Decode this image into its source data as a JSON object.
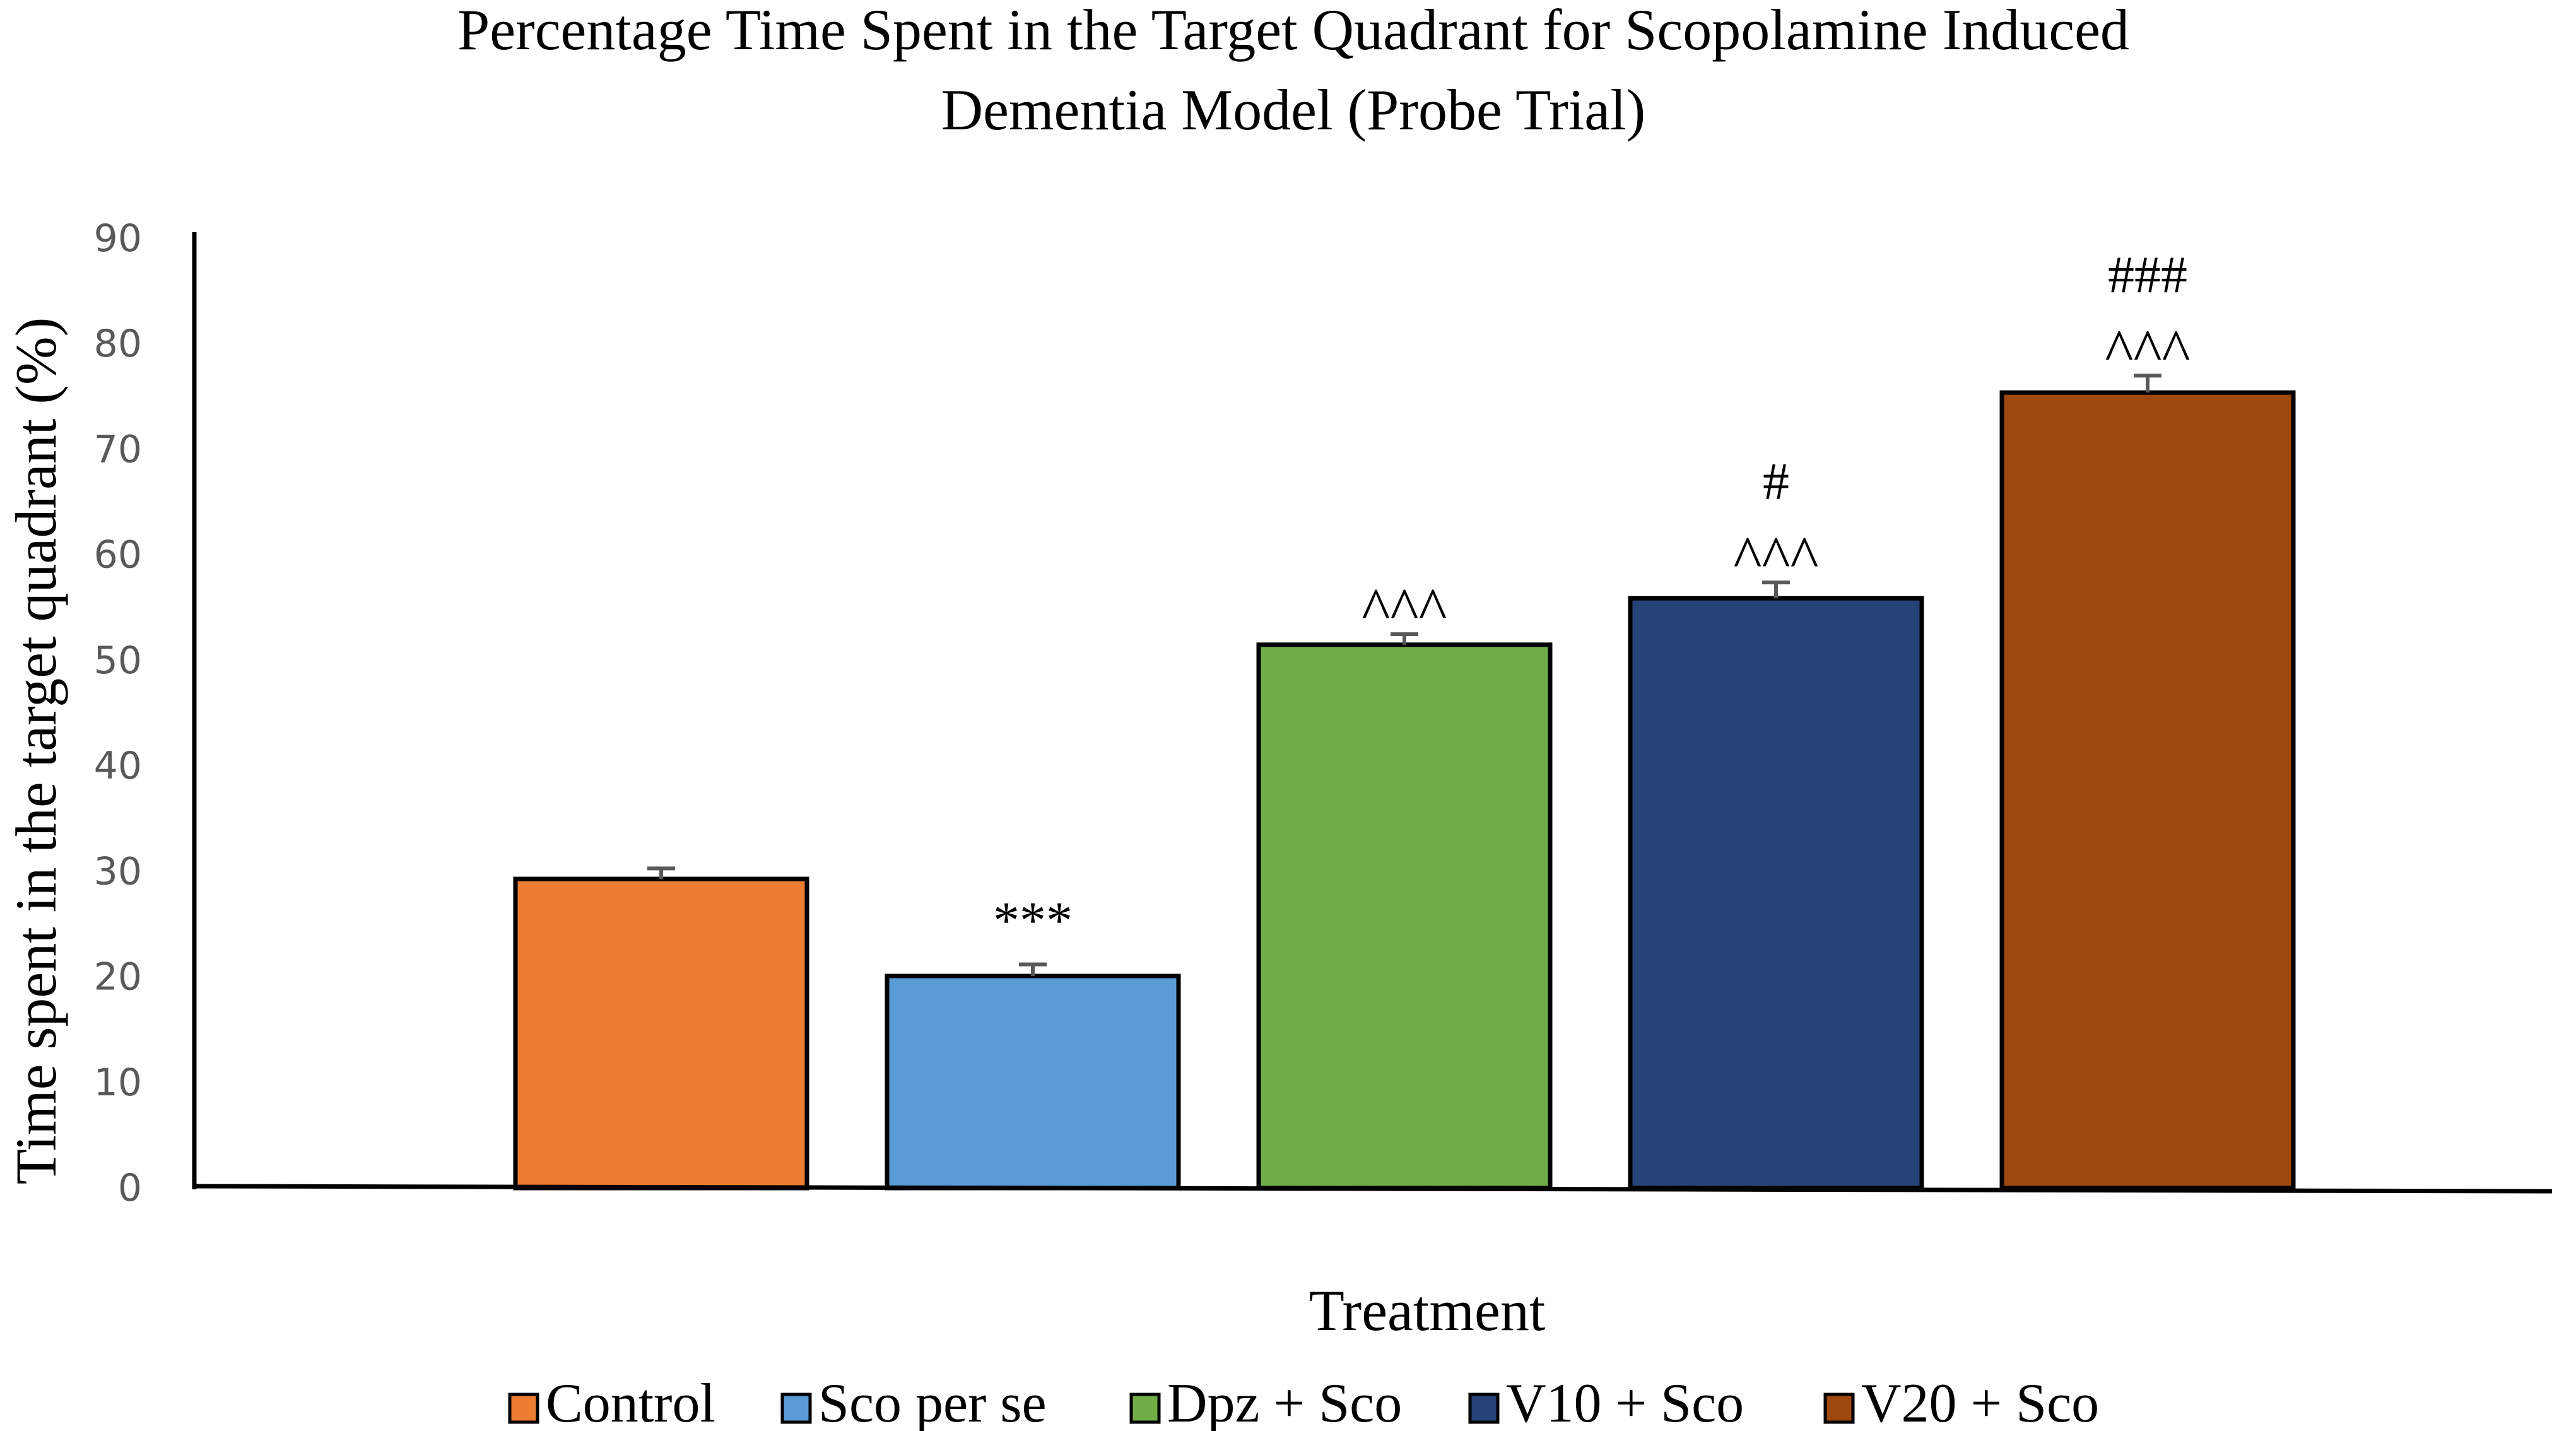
{
  "chart_data": {
    "type": "bar",
    "title_lines": [
      "Percentage Time Spent in the Target Quadrant for Scopolamine Induced",
      "Dementia Model (Probe Trial)"
    ],
    "xlabel": "Treatment",
    "ylabel": "Time spent in the target quadrant (%)",
    "ylim": [
      0,
      90
    ],
    "yticks": [
      0,
      10,
      20,
      30,
      40,
      50,
      60,
      70,
      80,
      90
    ],
    "grid": false,
    "legend_position": "bottom",
    "series": [
      {
        "name": "Control",
        "value": 29.3,
        "error": 1.0,
        "color": "#ED7D31",
        "annotations": []
      },
      {
        "name": "Sco per se",
        "value": 20.1,
        "error": 1.1,
        "color": "#5B9BD5",
        "annotations": [
          "***"
        ]
      },
      {
        "name": "Dpz + Sco",
        "value": 51.5,
        "error": 1.0,
        "color": "#70AD47",
        "annotations": [
          "^^^"
        ]
      },
      {
        "name": "V10 + Sco",
        "value": 55.9,
        "error": 1.5,
        "color": "#264478",
        "annotations": [
          "^^^",
          "#"
        ]
      },
      {
        "name": "V20 + Sco",
        "value": 75.4,
        "error": 1.6,
        "color": "#9E480E",
        "annotations": [
          "^^^",
          "###"
        ]
      }
    ]
  }
}
